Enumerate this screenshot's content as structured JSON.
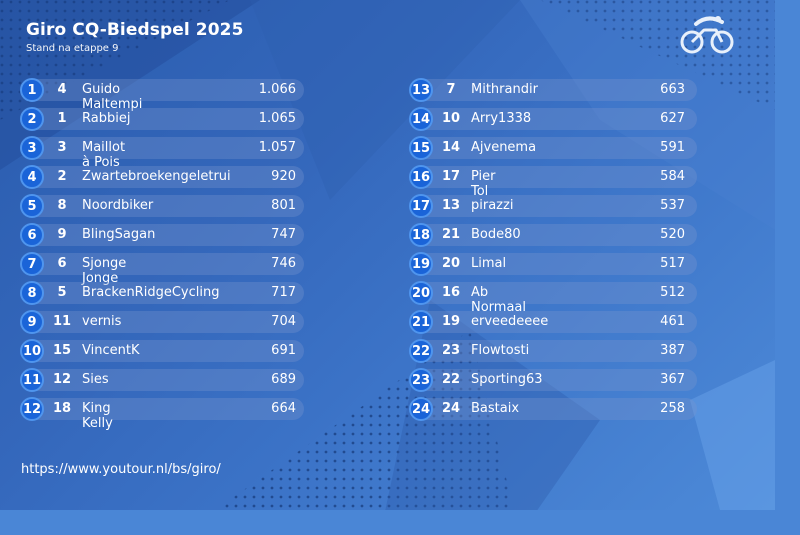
{
  "header": {
    "title": "Giro CQ-Biedspel 2025",
    "subtitle": "Stand na etappe 9"
  },
  "logo": {
    "icon": "cyclist-logo-icon"
  },
  "footer": {
    "url": "https://www.youtour.nl/bs/giro/"
  },
  "standings": {
    "left": [
      {
        "rank": "1",
        "prev": "4",
        "name": "Guido Maltempi",
        "score": "1.066"
      },
      {
        "rank": "2",
        "prev": "1",
        "name": "Rabbiej",
        "score": "1.065"
      },
      {
        "rank": "3",
        "prev": "3",
        "name": "Maillot à Pois",
        "score": "1.057"
      },
      {
        "rank": "4",
        "prev": "2",
        "name": "Zwartebroekengeletrui",
        "score": "920"
      },
      {
        "rank": "5",
        "prev": "8",
        "name": "Noordbiker",
        "score": "801"
      },
      {
        "rank": "6",
        "prev": "9",
        "name": "BlingSagan",
        "score": "747"
      },
      {
        "rank": "7",
        "prev": "6",
        "name": "Sjonge Jonge",
        "score": "746"
      },
      {
        "rank": "8",
        "prev": "5",
        "name": "BrackenRidgeCycling",
        "score": "717"
      },
      {
        "rank": "9",
        "prev": "11",
        "name": "vernis",
        "score": "704"
      },
      {
        "rank": "10",
        "prev": "15",
        "name": "VincentK",
        "score": "691"
      },
      {
        "rank": "11",
        "prev": "12",
        "name": "Sies",
        "score": "689"
      },
      {
        "rank": "12",
        "prev": "18",
        "name": "King Kelly",
        "score": "664"
      }
    ],
    "right": [
      {
        "rank": "13",
        "prev": "7",
        "name": "Mithrandir",
        "score": "663"
      },
      {
        "rank": "14",
        "prev": "10",
        "name": "Arry1338",
        "score": "627"
      },
      {
        "rank": "15",
        "prev": "14",
        "name": "Ajvenema",
        "score": "591"
      },
      {
        "rank": "16",
        "prev": "17",
        "name": "Pier Tol",
        "score": "584"
      },
      {
        "rank": "17",
        "prev": "13",
        "name": "pirazzi",
        "score": "537"
      },
      {
        "rank": "18",
        "prev": "21",
        "name": "Bode80",
        "score": "520"
      },
      {
        "rank": "19",
        "prev": "20",
        "name": "Limal",
        "score": "517"
      },
      {
        "rank": "20",
        "prev": "16",
        "name": "Ab Normaal",
        "score": "512"
      },
      {
        "rank": "21",
        "prev": "19",
        "name": "erveedeeee",
        "score": "461"
      },
      {
        "rank": "22",
        "prev": "23",
        "name": "Flowtosti",
        "score": "387"
      },
      {
        "rank": "23",
        "prev": "22",
        "name": "Sporting63",
        "score": "367"
      },
      {
        "rank": "24",
        "prev": "24",
        "name": "Bastaix",
        "score": "258"
      }
    ]
  },
  "colors": {
    "badge": "#1a64d8",
    "badge_border": "#4f95ee",
    "background": "#3467bb"
  }
}
